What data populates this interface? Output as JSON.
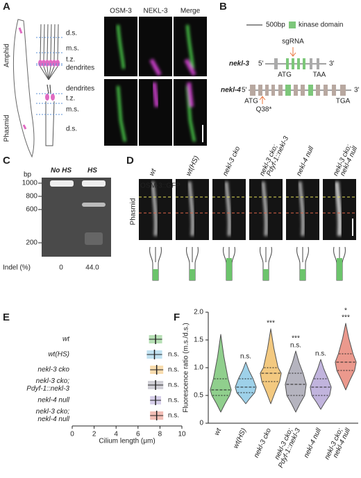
{
  "panel_a": {
    "label": "A",
    "channels": [
      "OSM-3",
      "NEKL-3",
      "Merge"
    ],
    "amphid": "Amphid",
    "phasmid": "Phasmid",
    "amphid_regions": [
      "d.s.",
      "m.s.",
      "t.z.",
      "dendrites"
    ],
    "phasmid_regions": [
      "dendrites",
      "t.z.",
      "m.s.",
      "d.s."
    ]
  },
  "panel_b": {
    "label": "B",
    "scale": "500bp",
    "legend": "kinase domain",
    "gene1": {
      "name": "nekl-3",
      "five": "5'",
      "three": "3'",
      "guide": "sgRNA",
      "start": "ATG",
      "stop": "TAA"
    },
    "gene2": {
      "name": "nekl-4",
      "five": "5'",
      "three": "3'",
      "start": "ATG",
      "stop": "TGA",
      "mutation": "Q38*"
    }
  },
  "panel_c": {
    "label": "C",
    "lanes": [
      "No HS",
      "HS"
    ],
    "unit": "bp",
    "ladder": [
      "1000",
      "800",
      "600",
      "200"
    ],
    "indel_label": "Indel (%)",
    "indel": [
      "0",
      "44.0"
    ]
  },
  "panel_d": {
    "label": "D",
    "marker": "OSM-3::GFP",
    "row": "Phasmid",
    "columns": [
      [
        "wt"
      ],
      [
        "wt(HS)"
      ],
      [
        "nekl-3 cko"
      ],
      [
        "nekl-3 cko;",
        "Pdyf-1::nekl-3"
      ],
      [
        "nekl-4 null"
      ],
      [
        "nekl-3 cko;",
        "nekl-4 null"
      ]
    ]
  },
  "chart_data": [
    {
      "type": "errorbar",
      "label": "E",
      "xlabel": "Cilium length (μm)",
      "categories": [
        [
          "wt"
        ],
        [
          "wt(HS)"
        ],
        [
          "nekl-3 cko"
        ],
        [
          "nekl-3 cko;",
          "Pdyf-1::nekl-3"
        ],
        [
          "nekl-4 null"
        ],
        [
          "nekl-3 cko;",
          "nekl-4 null"
        ]
      ],
      "values": [
        7.6,
        7.5,
        7.7,
        7.6,
        7.6,
        7.7
      ],
      "errors": [
        0.6,
        0.7,
        0.6,
        0.7,
        0.5,
        0.6
      ],
      "colors": [
        "#7dc77a",
        "#8ecae6",
        "#f2c06b",
        "#a9a8b5",
        "#b7a8d8",
        "#e8887a"
      ],
      "annotations": [
        null,
        "n.s.",
        "n.s.",
        "n.s.",
        "n.s.",
        "n.s."
      ],
      "xlim": [
        0,
        10
      ],
      "xticks": [
        0,
        2,
        4,
        6,
        8,
        10
      ]
    },
    {
      "type": "violin",
      "label": "F",
      "ylabel": "Fluorescence ratio (m.s./d.s.)",
      "categories": [
        [
          "wt"
        ],
        [
          "wt(HS)"
        ],
        [
          "nekl-3 cko"
        ],
        [
          "nekl-3 cko;",
          "Pdyf-1::nekl-3"
        ],
        [
          "nekl-4 null"
        ],
        [
          "nekl-3 cko;",
          "nekl-4 null"
        ]
      ],
      "colors": [
        "#7dc77a",
        "#8ecae6",
        "#f2c06b",
        "#a9a8b5",
        "#b7a8d8",
        "#e8887a"
      ],
      "min": [
        0.2,
        0.35,
        0.35,
        0.2,
        0.25,
        0.6
      ],
      "q1": [
        0.5,
        0.55,
        0.75,
        0.5,
        0.5,
        0.95
      ],
      "median": [
        0.6,
        0.65,
        0.9,
        0.7,
        0.65,
        1.1
      ],
      "q3": [
        0.8,
        0.8,
        1.0,
        0.9,
        0.8,
        1.25
      ],
      "max": [
        1.6,
        1.1,
        1.7,
        1.3,
        1.15,
        1.8
      ],
      "annotations": [
        [],
        [
          {
            "text": "n.s.",
            "color": "#7dc77a"
          }
        ],
        [
          {
            "text": "***",
            "color": "#7dc77a"
          }
        ],
        [
          {
            "text": "***",
            "color": "#f2c06b"
          },
          {
            "text": "n.s.",
            "color": "#7dc77a"
          }
        ],
        [
          {
            "text": "n.s.",
            "color": "#7dc77a"
          }
        ],
        [
          {
            "text": "*",
            "color": "#f2c06b"
          },
          {
            "text": "***",
            "color": "#7dc77a"
          }
        ]
      ],
      "ylim": [
        0,
        2.0
      ],
      "yticks": [
        0,
        0.5,
        {
          "value": 1,
          "label": "1.0"
        },
        1.5,
        {
          "value": 2,
          "label": "2.0"
        }
      ]
    }
  ]
}
